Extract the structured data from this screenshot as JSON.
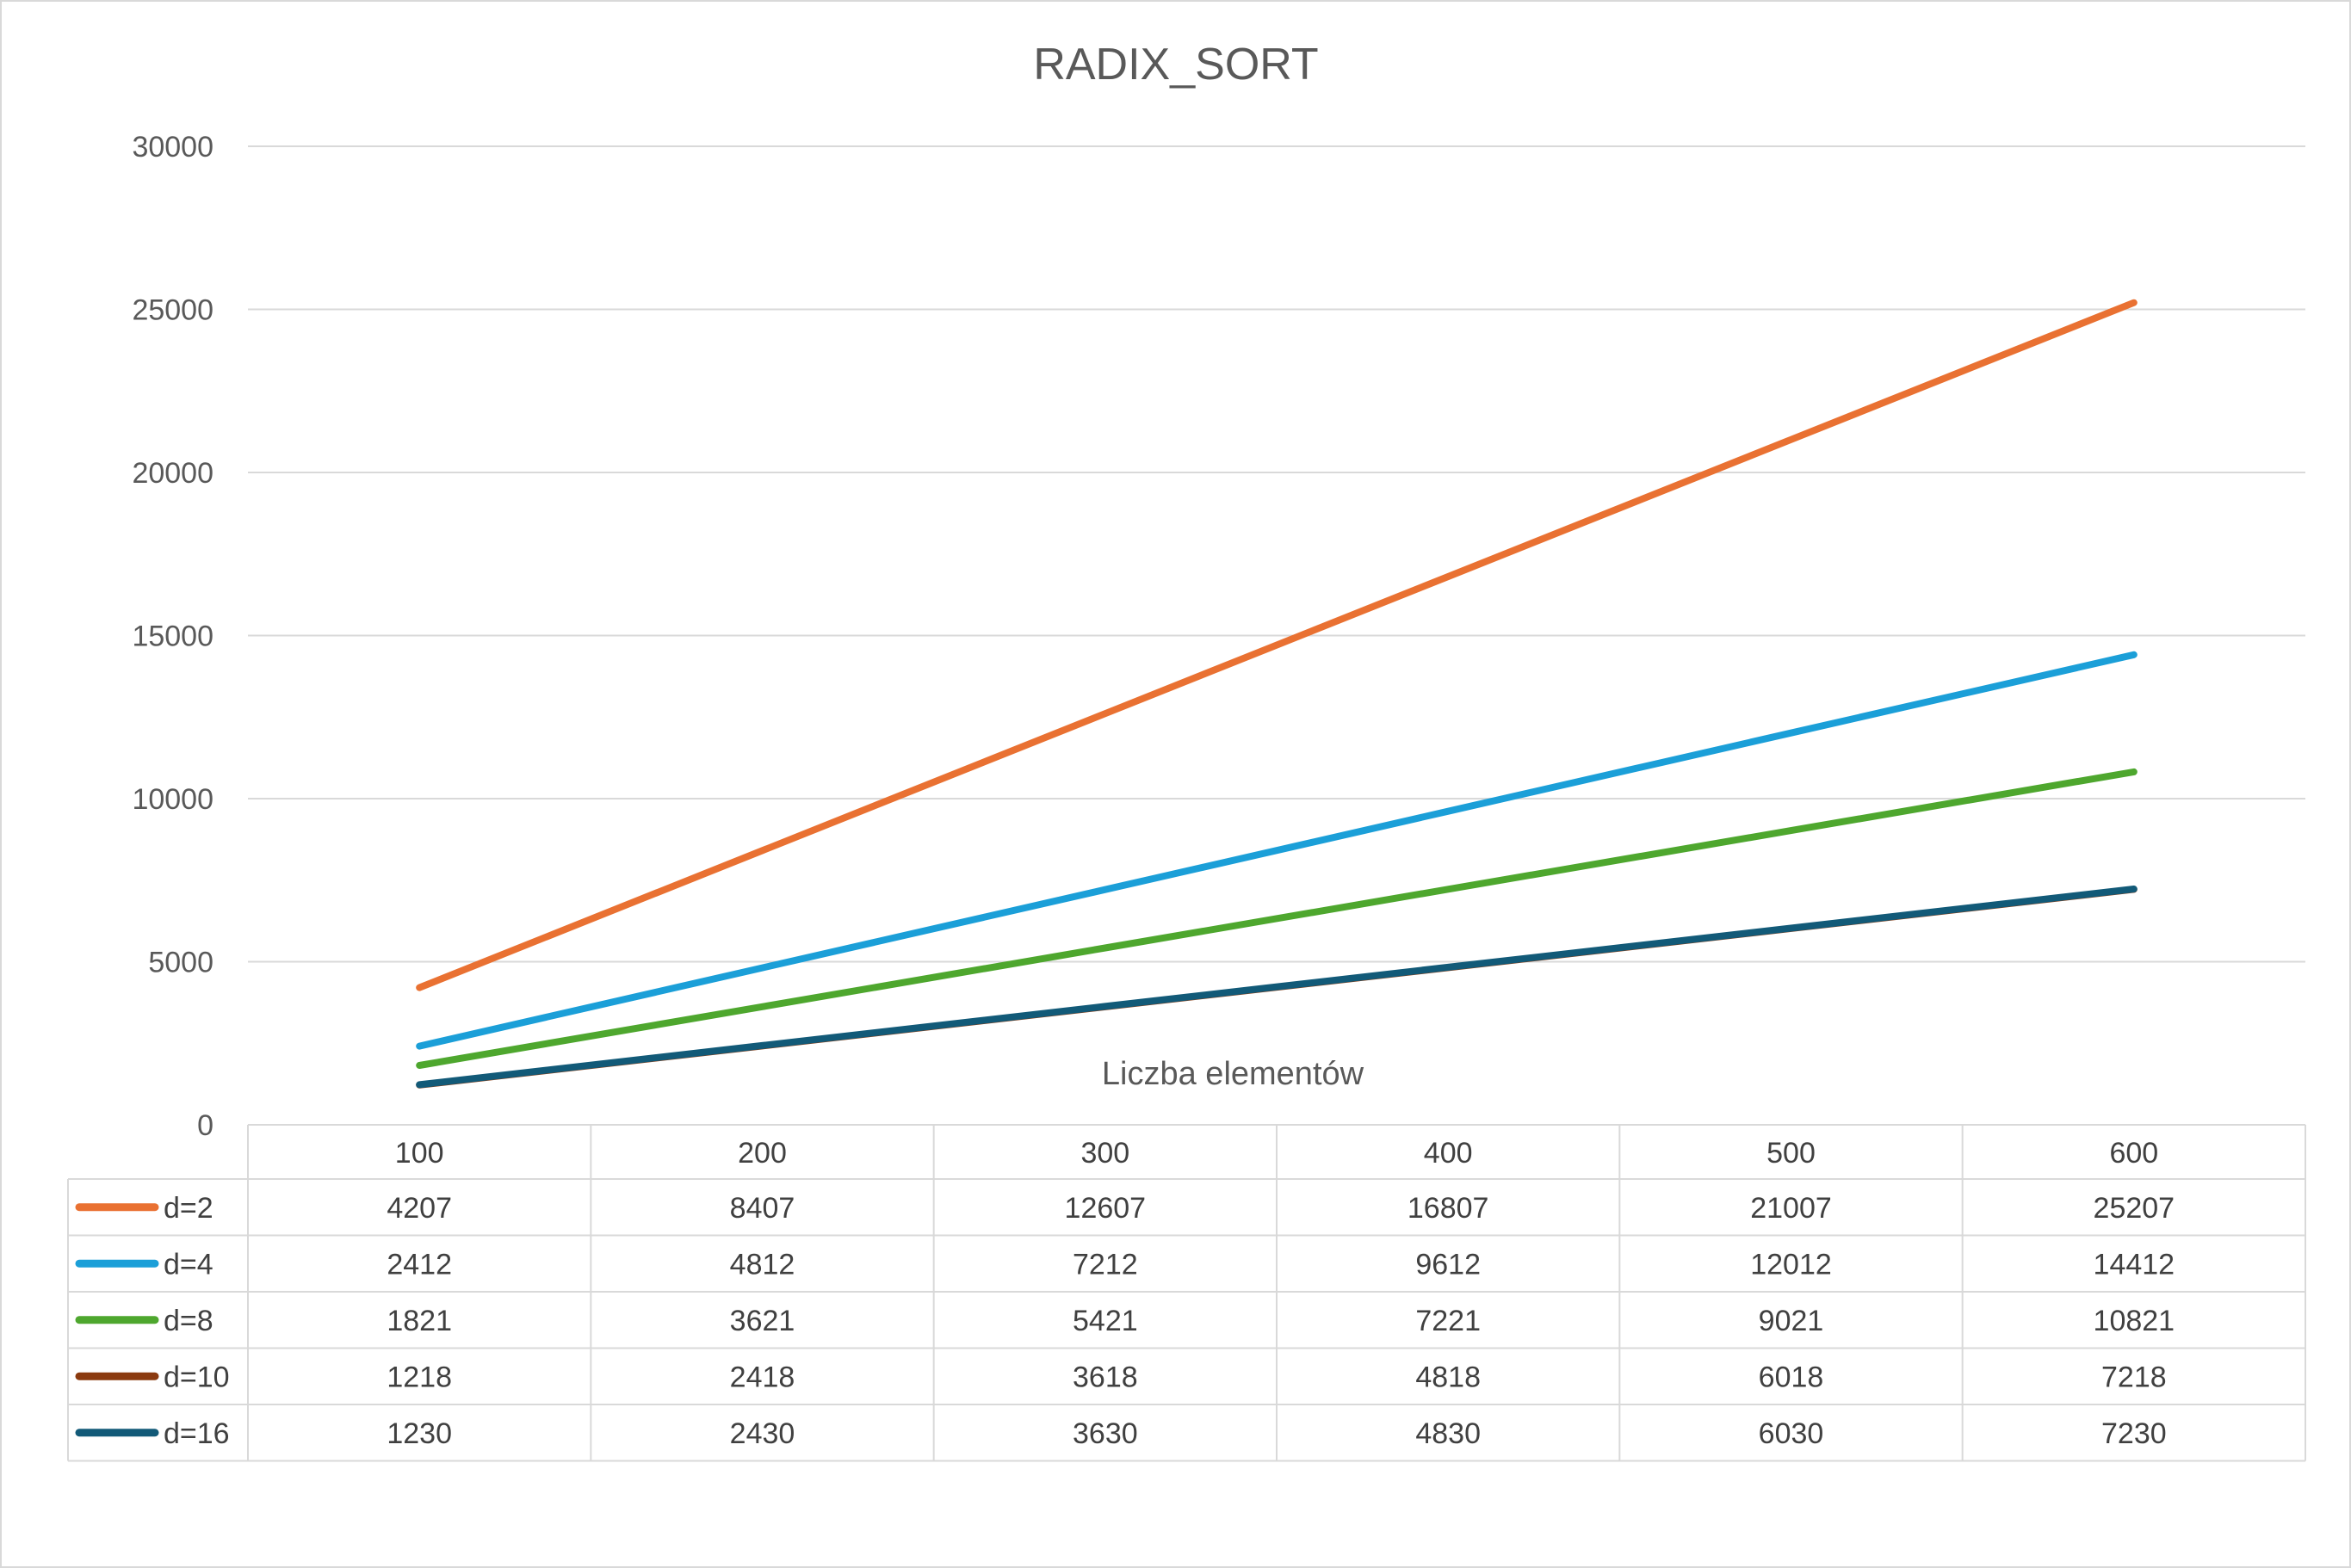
{
  "chart_data": {
    "type": "line",
    "title": "RADIX_SORT",
    "xlabel": "Liczba elementów",
    "ylabel": "",
    "ylim": [
      0,
      30000
    ],
    "y_ticks": [
      0,
      5000,
      10000,
      15000,
      20000,
      25000,
      30000
    ],
    "grid": true,
    "legend_placement": "data-table-left",
    "categories": [
      "100",
      "200",
      "300",
      "400",
      "500",
      "600"
    ],
    "series": [
      {
        "name": "d=2",
        "color": "#E97132",
        "values": [
          4207,
          8407,
          12607,
          16807,
          21007,
          25207
        ]
      },
      {
        "name": "d=4",
        "color": "#1B9FD8",
        "values": [
          2412,
          4812,
          7212,
          9612,
          12012,
          14412
        ]
      },
      {
        "name": "d=8",
        "color": "#4EA72E",
        "values": [
          1821,
          3621,
          5421,
          7221,
          9021,
          10821
        ]
      },
      {
        "name": "d=10",
        "color": "#8B3A0F",
        "values": [
          1218,
          2418,
          3618,
          4818,
          6018,
          7218
        ]
      },
      {
        "name": "d=16",
        "color": "#125A78",
        "values": [
          1230,
          2430,
          3630,
          4830,
          6030,
          7230
        ]
      }
    ]
  }
}
